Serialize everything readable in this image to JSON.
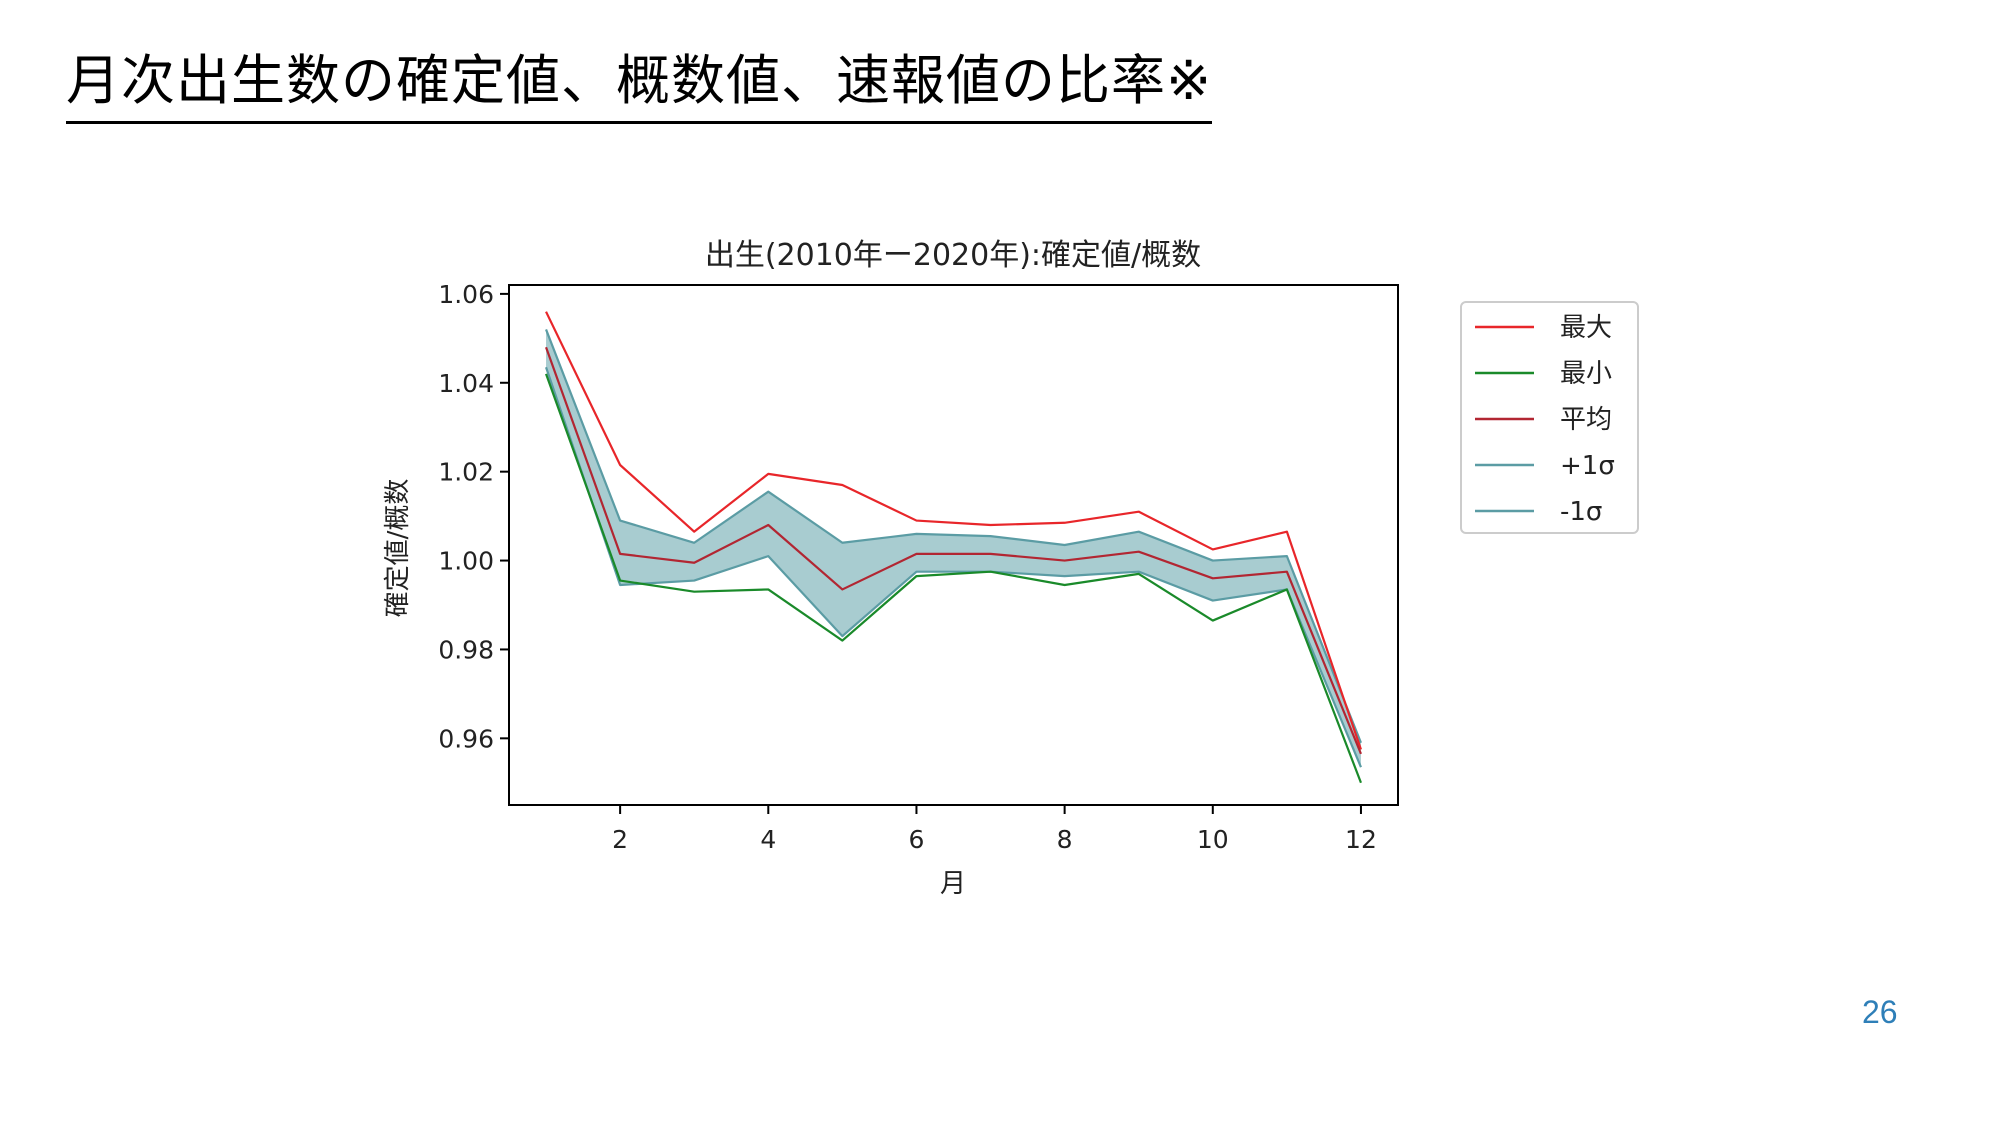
{
  "slide": {
    "title": "月次出生数の確定値、概数値、速報値の比率※",
    "page_number": "26"
  },
  "chart_data": {
    "type": "line",
    "title": "出生(2010年ー2020年):確定値/概数",
    "xlabel": "月",
    "ylabel": "確定値/概数",
    "x": [
      1,
      2,
      3,
      4,
      5,
      6,
      7,
      8,
      9,
      10,
      11,
      12
    ],
    "xlim": [
      0.5,
      12.5
    ],
    "ylim": [
      0.945,
      1.062
    ],
    "xticks": [
      2,
      4,
      6,
      8,
      10,
      12
    ],
    "xtick_labels": [
      "2",
      "4",
      "6",
      "8",
      "10",
      "12"
    ],
    "yticks": [
      0.96,
      0.98,
      1.0,
      1.02,
      1.04,
      1.06
    ],
    "ytick_labels": [
      "0.96",
      "0.98",
      "1.00",
      "1.02",
      "1.04",
      "1.06"
    ],
    "grid": false,
    "legend_position": "outside-right",
    "band": {
      "between": [
        "+1σ",
        "-1σ"
      ],
      "color": "#a8ccd0"
    },
    "series": [
      {
        "name": "最大",
        "color": "#e8262a",
        "values": [
          1.056,
          1.0215,
          1.0065,
          1.0195,
          1.017,
          1.009,
          1.008,
          1.0085,
          1.011,
          1.0025,
          1.0065,
          0.9575
        ]
      },
      {
        "name": "最小",
        "color": "#1a8a2a",
        "values": [
          1.042,
          0.9955,
          0.993,
          0.9935,
          0.982,
          0.9965,
          0.9975,
          0.9945,
          0.997,
          0.9865,
          0.9935,
          0.95
        ]
      },
      {
        "name": "平均",
        "color": "#b22632",
        "values": [
          1.048,
          1.0015,
          0.9995,
          1.008,
          0.9935,
          1.0015,
          1.0015,
          1.0,
          1.002,
          0.996,
          0.9975,
          0.9565
        ]
      },
      {
        "name": "+1σ",
        "color": "#5b9ca4",
        "values": [
          1.052,
          1.009,
          1.004,
          1.0155,
          1.004,
          1.006,
          1.0055,
          1.0035,
          1.0065,
          1.0,
          1.001,
          0.959
        ]
      },
      {
        "name": "-1σ",
        "color": "#5b9ca4",
        "values": [
          1.0435,
          0.9945,
          0.9955,
          1.001,
          0.983,
          0.9975,
          0.9975,
          0.9965,
          0.9975,
          0.991,
          0.9935,
          0.9535
        ]
      }
    ]
  }
}
